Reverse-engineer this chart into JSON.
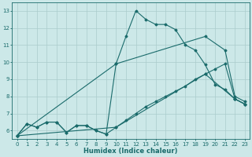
{
  "xlabel": "Humidex (Indice chaleur)",
  "xlim": [
    -0.5,
    23.5
  ],
  "ylim": [
    5.5,
    13.5
  ],
  "xticks": [
    0,
    1,
    2,
    3,
    4,
    5,
    6,
    7,
    8,
    9,
    10,
    11,
    12,
    13,
    14,
    15,
    16,
    17,
    18,
    19,
    20,
    21,
    22,
    23
  ],
  "yticks": [
    6,
    7,
    8,
    9,
    10,
    11,
    12,
    13
  ],
  "bg_color": "#cce8e8",
  "grid_color": "#aacccc",
  "line_color": "#1a6b6b",
  "lines": [
    {
      "x": [
        0,
        1,
        2,
        3,
        4,
        5,
        6,
        7,
        8,
        9,
        10,
        11,
        12,
        13,
        14,
        15,
        16,
        17,
        18,
        19,
        20,
        21,
        22,
        23
      ],
      "y": [
        5.7,
        6.4,
        6.2,
        6.5,
        6.5,
        5.9,
        6.3,
        6.3,
        6.0,
        5.8,
        6.2,
        6.6,
        7.0,
        7.4,
        7.7,
        8.0,
        8.3,
        8.6,
        9.0,
        9.3,
        9.6,
        9.9,
        7.85,
        7.55
      ]
    },
    {
      "x": [
        0,
        1,
        2,
        3,
        4,
        5,
        6,
        7,
        8,
        9,
        10,
        11,
        12,
        13,
        14,
        15,
        16,
        17,
        18,
        19,
        20,
        21,
        22,
        23
      ],
      "y": [
        5.7,
        6.4,
        6.2,
        6.5,
        6.5,
        5.9,
        6.3,
        6.3,
        6.0,
        5.8,
        9.9,
        11.5,
        13.0,
        12.5,
        12.2,
        12.2,
        11.9,
        11.0,
        10.7,
        9.85,
        8.7,
        8.4,
        7.85,
        7.55
      ]
    },
    {
      "x": [
        0,
        10,
        19,
        22,
        23
      ],
      "y": [
        5.7,
        6.2,
        9.3,
        7.85,
        7.55
      ]
    },
    {
      "x": [
        0,
        10,
        19,
        21,
        22,
        23
      ],
      "y": [
        5.7,
        9.9,
        11.5,
        10.7,
        8.0,
        7.7
      ]
    }
  ]
}
